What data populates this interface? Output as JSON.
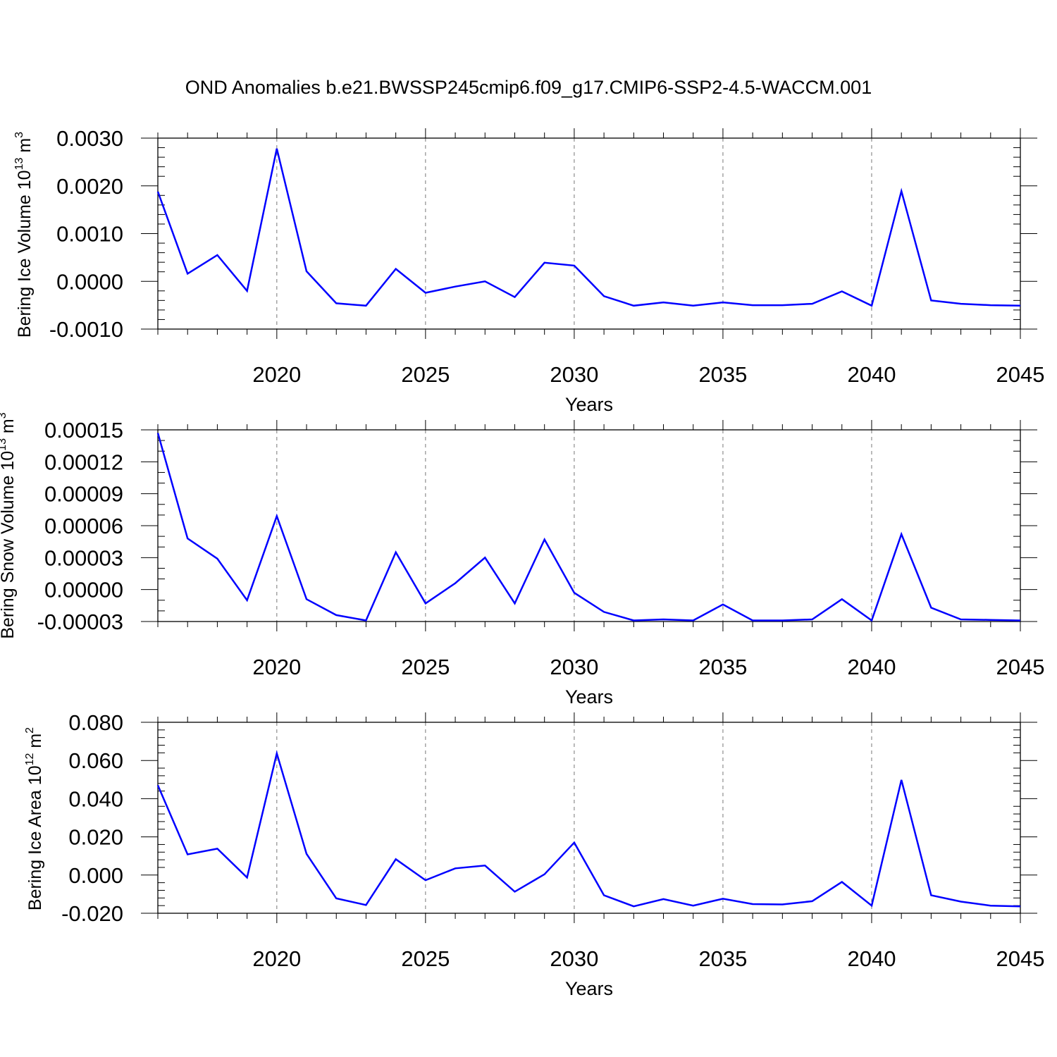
{
  "title": "OND Anomalies b.e21.BWSSP245cmip6.f09_g17.CMIP6-SSP2-4.5-WACCM.001",
  "line_color": "#0000ff",
  "chart_data": [
    {
      "type": "line",
      "ylabel": "Bering Ice Volume 10",
      "ylabel_sup": "13",
      "ylabel_unit": " m",
      "ylabel_unit_sup": "3",
      "xlabel": "Years",
      "xlim": [
        2016,
        2045
      ],
      "ylim": [
        -0.001,
        0.003
      ],
      "y_ticks": [
        -0.001,
        0.0,
        0.001,
        0.002,
        0.003
      ],
      "y_tick_labels": [
        "-0.0010",
        "0.0000",
        "0.0010",
        "0.0020",
        "0.0030"
      ],
      "y_minor_step": 0.0002,
      "x_ticks": [
        2020,
        2025,
        2030,
        2035,
        2040,
        2045
      ],
      "x_tick_labels": [
        "2020",
        "2025",
        "2030",
        "2035",
        "2040",
        "2045"
      ],
      "x_gridlines": [
        2020,
        2025,
        2030,
        2035,
        2040
      ],
      "x": [
        2016,
        2017,
        2018,
        2019,
        2020,
        2021,
        2022,
        2023,
        2024,
        2025,
        2026,
        2027,
        2028,
        2029,
        2030,
        2031,
        2032,
        2033,
        2034,
        2035,
        2036,
        2037,
        2038,
        2039,
        2040,
        2041,
        2042,
        2043,
        2044,
        2045
      ],
      "values": [
        0.00188,
        0.00016,
        0.00055,
        -0.0002,
        0.00278,
        0.00021,
        -0.00046,
        -0.00051,
        0.00026,
        -0.00024,
        -0.00011,
        0.0,
        -0.00033,
        0.00039,
        0.00033,
        -0.00031,
        -0.00051,
        -0.00044,
        -0.00051,
        -0.00044,
        -0.0005,
        -0.0005,
        -0.00047,
        -0.00021,
        -0.00051,
        0.00189,
        -0.0004,
        -0.00047,
        -0.0005,
        -0.00051
      ]
    },
    {
      "type": "line",
      "ylabel": "Bering Snow Volume 10",
      "ylabel_sup": "13",
      "ylabel_unit": " m",
      "ylabel_unit_sup": "3",
      "xlabel": "Years",
      "xlim": [
        2016,
        2045
      ],
      "ylim": [
        -3e-05,
        0.00015
      ],
      "y_ticks": [
        -3e-05,
        0.0,
        3e-05,
        6e-05,
        9e-05,
        0.00012,
        0.00015
      ],
      "y_tick_labels": [
        "-0.00003",
        "0.00000",
        "0.00003",
        "0.00006",
        "0.00009",
        "0.00012",
        "0.00015"
      ],
      "y_minor_step": 1e-05,
      "x_ticks": [
        2020,
        2025,
        2030,
        2035,
        2040,
        2045
      ],
      "x_tick_labels": [
        "2020",
        "2025",
        "2030",
        "2035",
        "2040",
        "2045"
      ],
      "x_gridlines": [
        2020,
        2025,
        2030,
        2035,
        2040
      ],
      "x": [
        2016,
        2017,
        2018,
        2019,
        2020,
        2021,
        2022,
        2023,
        2024,
        2025,
        2026,
        2027,
        2028,
        2029,
        2030,
        2031,
        2032,
        2033,
        2034,
        2035,
        2036,
        2037,
        2038,
        2039,
        2040,
        2041,
        2042,
        2043,
        2044,
        2045
      ],
      "values": [
        0.000147,
        4.8e-05,
        2.9e-05,
        -1e-05,
        6.9e-05,
        -9e-06,
        -2.4e-05,
        -2.9e-05,
        3.5e-05,
        -1.3e-05,
        6e-06,
        3e-05,
        -1.3e-05,
        4.7e-05,
        -3e-06,
        -2.1e-05,
        -2.9e-05,
        -2.8e-05,
        -2.9e-05,
        -1.4e-05,
        -2.9e-05,
        -2.9e-05,
        -2.8e-05,
        -9e-06,
        -2.9e-05,
        5.2e-05,
        -1.7e-05,
        -2.8e-05,
        -2.85e-05,
        -2.9e-05
      ]
    },
    {
      "type": "line",
      "ylabel": "Bering Ice Area 10",
      "ylabel_sup": "12",
      "ylabel_unit": " m",
      "ylabel_unit_sup": "2",
      "xlabel": "Years",
      "xlim": [
        2016,
        2045
      ],
      "ylim": [
        -0.02,
        0.08
      ],
      "y_ticks": [
        -0.02,
        0.0,
        0.02,
        0.04,
        0.06,
        0.08
      ],
      "y_tick_labels": [
        "-0.020",
        "0.000",
        "0.020",
        "0.040",
        "0.060",
        "0.080"
      ],
      "y_minor_step": 0.004,
      "x_ticks": [
        2020,
        2025,
        2030,
        2035,
        2040,
        2045
      ],
      "x_tick_labels": [
        "2020",
        "2025",
        "2030",
        "2035",
        "2040",
        "2045"
      ],
      "x_gridlines": [
        2020,
        2025,
        2030,
        2035,
        2040
      ],
      "x": [
        2016,
        2017,
        2018,
        2019,
        2020,
        2021,
        2022,
        2023,
        2024,
        2025,
        2026,
        2027,
        2028,
        2029,
        2030,
        2031,
        2032,
        2033,
        2034,
        2035,
        2036,
        2037,
        2038,
        2039,
        2040,
        2041,
        2042,
        2043,
        2044,
        2045
      ],
      "values": [
        0.047,
        0.0108,
        0.0138,
        -0.0013,
        0.0637,
        0.0111,
        -0.0122,
        -0.0157,
        0.0083,
        -0.0027,
        0.0035,
        0.005,
        -0.0087,
        0.0004,
        0.017,
        -0.0106,
        -0.0164,
        -0.0126,
        -0.016,
        -0.0124,
        -0.0152,
        -0.0154,
        -0.0137,
        -0.0036,
        -0.016,
        0.0498,
        -0.0106,
        -0.0139,
        -0.016,
        -0.0164
      ]
    }
  ]
}
